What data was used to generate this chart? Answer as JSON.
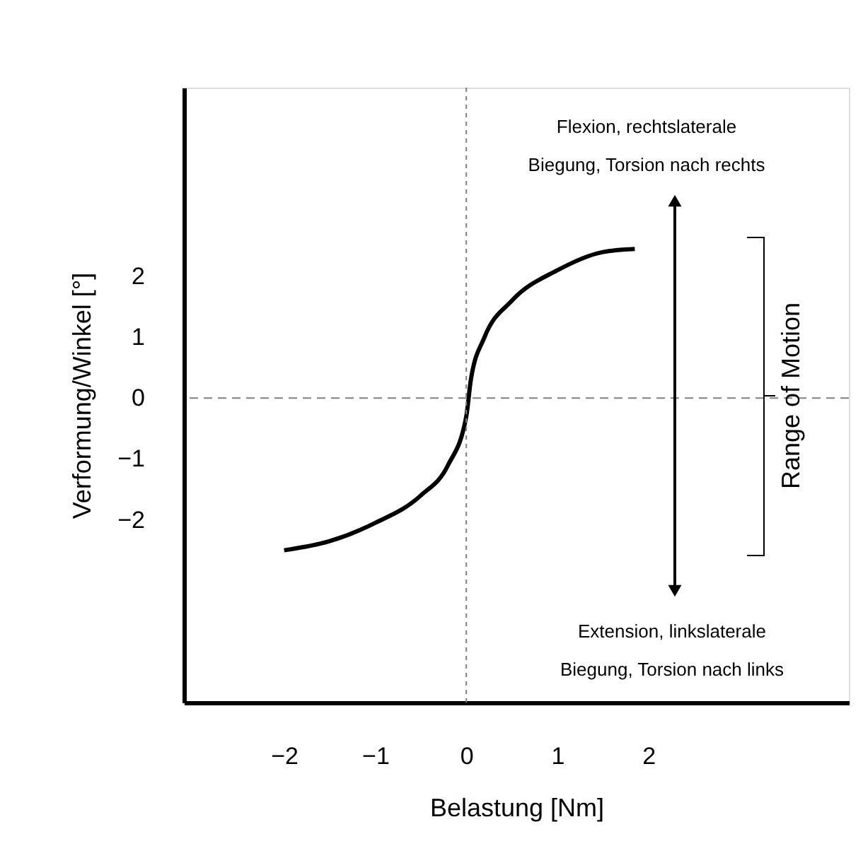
{
  "chart_data": {
    "type": "line",
    "xlabel": "Belastung [Nm]",
    "ylabel": "Verformung/Winkel [°]",
    "x": [
      -2,
      -1.5,
      -1,
      -0.5,
      -0.2,
      0,
      0.05,
      0.2,
      0.5,
      1,
      1.5,
      1.85
    ],
    "series": [
      {
        "color": "#000000",
        "values": [
          -2.5,
          -2.35,
          -2.05,
          -1.6,
          -1.1,
          -0.3,
          0.3,
          1.0,
          1.6,
          2.1,
          2.4,
          2.45
        ]
      }
    ],
    "xlim": [
      -3.1,
      4.2
    ],
    "ylim": [
      -5,
      5.1
    ],
    "xticks": [
      -2,
      -1,
      0,
      1,
      2
    ],
    "yticks": [
      -2,
      -1,
      0,
      1,
      2
    ],
    "grid": false,
    "marker": "none",
    "line_style": "solid",
    "ref_lines": [
      {
        "axis": "x",
        "value": 0,
        "color": "#808080",
        "line_style": "dotted"
      },
      {
        "axis": "y",
        "value": 0,
        "color": "#808080",
        "line_style": "dashed"
      }
    ],
    "annotations": [
      "Flexion, rechtslaterale\nBiegung, Torsion nach rechts",
      "Extension, linkslaterale\nBiegung, Torsion nach links",
      "Range of Motion"
    ]
  }
}
